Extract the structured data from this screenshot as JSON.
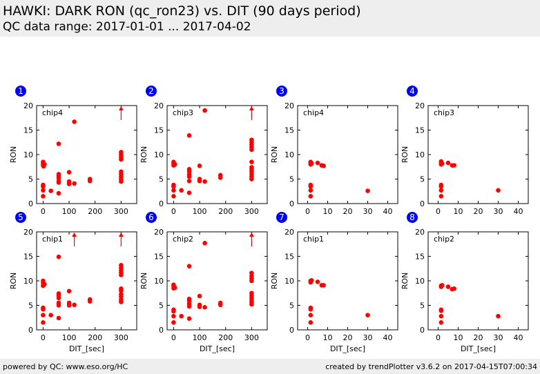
{
  "header": {
    "title": "HAWKI: DARK RON (qc_ron23) vs. DIT (90 days period)",
    "subtitle": "QC data range: 2017-01-01 ... 2017-04-02"
  },
  "footer": {
    "left": "powered by QC: www.eso.org/HC",
    "right": "created by trendPlotter v3.6.2 on 2017-04-15T07:00:34"
  },
  "colors": {
    "points": "#ff0000",
    "badge": "#0000ff"
  },
  "chart_data": [
    {
      "type": "scatter",
      "panel": "1",
      "label": "chip4",
      "xlabel": "DIT_[sec]",
      "ylabel": "RON",
      "xlim": [
        -25,
        360
      ],
      "ylim": [
        0,
        20
      ],
      "xticks": [
        0,
        100,
        200,
        300
      ],
      "yticks": [
        0,
        5,
        10,
        15,
        20
      ],
      "points": [
        [
          0,
          1.5
        ],
        [
          0,
          2.7
        ],
        [
          0,
          3.5
        ],
        [
          0,
          3.8
        ],
        [
          0,
          7.8
        ],
        [
          0,
          8.2
        ],
        [
          0,
          8.5
        ],
        [
          5,
          8.0
        ],
        [
          2,
          7.6
        ],
        [
          30,
          2.6
        ],
        [
          60,
          2.1
        ],
        [
          60,
          4.3
        ],
        [
          60,
          4.6
        ],
        [
          60,
          5.2
        ],
        [
          60,
          5.6
        ],
        [
          60,
          6.0
        ],
        [
          60,
          12.2
        ],
        [
          100,
          4.0
        ],
        [
          100,
          4.5
        ],
        [
          100,
          6.4
        ],
        [
          120,
          4.1
        ],
        [
          120,
          16.7
        ],
        [
          180,
          4.6
        ],
        [
          180,
          5.0
        ],
        [
          300,
          4.5
        ],
        [
          300,
          5.0
        ],
        [
          300,
          5.5
        ],
        [
          300,
          6.0
        ],
        [
          300,
          6.5
        ],
        [
          300,
          9.0
        ],
        [
          300,
          9.5
        ],
        [
          300,
          10.0
        ],
        [
          300,
          10.5
        ]
      ],
      "outliers": [
        300
      ]
    },
    {
      "type": "scatter",
      "panel": "2",
      "label": "chip3",
      "xlabel": "DIT_[sec]",
      "ylabel": "RON",
      "xlim": [
        -25,
        360
      ],
      "ylim": [
        0,
        20
      ],
      "xticks": [
        0,
        100,
        200,
        300
      ],
      "yticks": [
        0,
        5,
        10,
        15,
        20
      ],
      "points": [
        [
          0,
          1.5
        ],
        [
          0,
          2.7
        ],
        [
          0,
          3.5
        ],
        [
          0,
          3.8
        ],
        [
          0,
          7.8
        ],
        [
          0,
          8.2
        ],
        [
          0,
          8.5
        ],
        [
          5,
          8.0
        ],
        [
          30,
          2.7
        ],
        [
          60,
          2.2
        ],
        [
          60,
          4.6
        ],
        [
          60,
          5.5
        ],
        [
          60,
          6.0
        ],
        [
          60,
          6.6
        ],
        [
          60,
          7.0
        ],
        [
          60,
          13.9
        ],
        [
          100,
          4.6
        ],
        [
          100,
          5.0
        ],
        [
          100,
          7.7
        ],
        [
          120,
          4.5
        ],
        [
          120,
          19.0
        ],
        [
          180,
          5.3
        ],
        [
          180,
          5.8
        ],
        [
          300,
          5.0
        ],
        [
          300,
          5.5
        ],
        [
          300,
          6.0
        ],
        [
          300,
          6.5
        ],
        [
          300,
          7.0
        ],
        [
          300,
          7.4
        ],
        [
          300,
          8.5
        ],
        [
          300,
          11.0
        ],
        [
          300,
          11.5
        ],
        [
          300,
          12.0
        ],
        [
          300,
          12.5
        ],
        [
          300,
          13.0
        ]
      ],
      "outliers": [
        300
      ]
    },
    {
      "type": "scatter",
      "panel": "3",
      "label": "chip4",
      "xlabel": "DIT_[sec]",
      "ylabel": "RON",
      "xlim": [
        -5,
        45
      ],
      "ylim": [
        0,
        20
      ],
      "xticks": [
        0,
        10,
        20,
        30,
        40
      ],
      "yticks": [
        0,
        5,
        10,
        15,
        20
      ],
      "points": [
        [
          1.5,
          1.5
        ],
        [
          1.5,
          2.7
        ],
        [
          1.5,
          3.5
        ],
        [
          1.5,
          3.8
        ],
        [
          1.5,
          8.0
        ],
        [
          1.5,
          8.3
        ],
        [
          1.5,
          8.5
        ],
        [
          2,
          8.2
        ],
        [
          5,
          8.3
        ],
        [
          7,
          7.8
        ],
        [
          8,
          7.7
        ],
        [
          30,
          2.6
        ]
      ],
      "outliers": []
    },
    {
      "type": "scatter",
      "panel": "4",
      "label": "chip3",
      "xlabel": "DIT_[sec]",
      "ylabel": "RON",
      "xlim": [
        -5,
        45
      ],
      "ylim": [
        0,
        20
      ],
      "xticks": [
        0,
        10,
        20,
        30,
        40
      ],
      "yticks": [
        0,
        5,
        10,
        15,
        20
      ],
      "points": [
        [
          1.5,
          1.5
        ],
        [
          1.5,
          2.7
        ],
        [
          1.5,
          3.5
        ],
        [
          1.5,
          3.8
        ],
        [
          1.5,
          8.0
        ],
        [
          1.5,
          8.3
        ],
        [
          1.5,
          8.6
        ],
        [
          2,
          8.2
        ],
        [
          5,
          8.3
        ],
        [
          7,
          7.8
        ],
        [
          8,
          7.8
        ],
        [
          30,
          2.7
        ]
      ],
      "outliers": []
    },
    {
      "type": "scatter",
      "panel": "5",
      "label": "chip1",
      "xlabel": "DIT_[sec]",
      "ylabel": "RON",
      "xlim": [
        -25,
        360
      ],
      "ylim": [
        0,
        20
      ],
      "xticks": [
        0,
        100,
        200,
        300
      ],
      "yticks": [
        0,
        5,
        10,
        15,
        20
      ],
      "points": [
        [
          0,
          1.5
        ],
        [
          0,
          3.0
        ],
        [
          0,
          4.2
        ],
        [
          0,
          4.5
        ],
        [
          0,
          9.0
        ],
        [
          0,
          9.6
        ],
        [
          0,
          10.0
        ],
        [
          5,
          9.3
        ],
        [
          30,
          3.0
        ],
        [
          60,
          2.4
        ],
        [
          60,
          5.0
        ],
        [
          60,
          5.5
        ],
        [
          60,
          6.5
        ],
        [
          60,
          7.0
        ],
        [
          60,
          7.4
        ],
        [
          60,
          14.9
        ],
        [
          100,
          5.0
        ],
        [
          100,
          5.5
        ],
        [
          100,
          7.9
        ],
        [
          120,
          5.1
        ],
        [
          180,
          5.8
        ],
        [
          180,
          6.2
        ],
        [
          300,
          5.7
        ],
        [
          300,
          6.2
        ],
        [
          300,
          6.8
        ],
        [
          300,
          7.3
        ],
        [
          300,
          8.0
        ],
        [
          300,
          8.4
        ],
        [
          300,
          11.2
        ],
        [
          300,
          11.7
        ],
        [
          300,
          12.2
        ],
        [
          300,
          12.7
        ],
        [
          300,
          13.2
        ]
      ],
      "outliers": [
        120,
        300
      ]
    },
    {
      "type": "scatter",
      "panel": "6",
      "label": "chip2",
      "xlabel": "DIT_[sec]",
      "ylabel": "RON",
      "xlim": [
        -25,
        360
      ],
      "ylim": [
        0,
        20
      ],
      "xticks": [
        0,
        100,
        200,
        300
      ],
      "yticks": [
        0,
        5,
        10,
        15,
        20
      ],
      "points": [
        [
          0,
          1.5
        ],
        [
          0,
          2.8
        ],
        [
          0,
          3.8
        ],
        [
          0,
          4.1
        ],
        [
          0,
          8.5
        ],
        [
          0,
          8.9
        ],
        [
          0,
          9.2
        ],
        [
          5,
          8.6
        ],
        [
          30,
          2.8
        ],
        [
          60,
          2.3
        ],
        [
          60,
          4.8
        ],
        [
          60,
          5.3
        ],
        [
          60,
          5.9
        ],
        [
          60,
          6.3
        ],
        [
          60,
          13.0
        ],
        [
          100,
          4.7
        ],
        [
          100,
          5.1
        ],
        [
          100,
          6.9
        ],
        [
          120,
          4.6
        ],
        [
          120,
          17.7
        ],
        [
          180,
          5.1
        ],
        [
          180,
          5.5
        ],
        [
          300,
          5.2
        ],
        [
          300,
          5.6
        ],
        [
          300,
          6.0
        ],
        [
          300,
          6.5
        ],
        [
          300,
          7.0
        ],
        [
          300,
          7.5
        ],
        [
          300,
          10.0
        ],
        [
          300,
          10.5
        ],
        [
          300,
          11.0
        ],
        [
          300,
          11.6
        ]
      ],
      "outliers": [
        300
      ]
    },
    {
      "type": "scatter",
      "panel": "7",
      "label": "chip1",
      "xlabel": "DIT_[sec]",
      "ylabel": "RON",
      "xlim": [
        -5,
        45
      ],
      "ylim": [
        0,
        20
      ],
      "xticks": [
        0,
        10,
        20,
        30,
        40
      ],
      "yticks": [
        0,
        5,
        10,
        15,
        20
      ],
      "points": [
        [
          1.5,
          1.5
        ],
        [
          1.5,
          3.0
        ],
        [
          1.5,
          4.2
        ],
        [
          1.5,
          4.5
        ],
        [
          1.5,
          9.7
        ],
        [
          1.5,
          10.0
        ],
        [
          2,
          10.1
        ],
        [
          5,
          9.8
        ],
        [
          7,
          9.1
        ],
        [
          8,
          9.1
        ],
        [
          30,
          3.0
        ]
      ],
      "outliers": []
    },
    {
      "type": "scatter",
      "panel": "8",
      "label": "chip2",
      "xlabel": "DIT_[sec]",
      "ylabel": "RON",
      "xlim": [
        -5,
        45
      ],
      "ylim": [
        0,
        20
      ],
      "xticks": [
        0,
        10,
        20,
        30,
        40
      ],
      "yticks": [
        0,
        5,
        10,
        15,
        20
      ],
      "points": [
        [
          1.5,
          1.5
        ],
        [
          1.5,
          2.8
        ],
        [
          1.5,
          3.9
        ],
        [
          1.5,
          4.1
        ],
        [
          1.5,
          8.8
        ],
        [
          1.5,
          9.0
        ],
        [
          2,
          9.1
        ],
        [
          5,
          8.8
        ],
        [
          7,
          8.3
        ],
        [
          8,
          8.4
        ],
        [
          30,
          2.8
        ]
      ],
      "outliers": []
    }
  ]
}
